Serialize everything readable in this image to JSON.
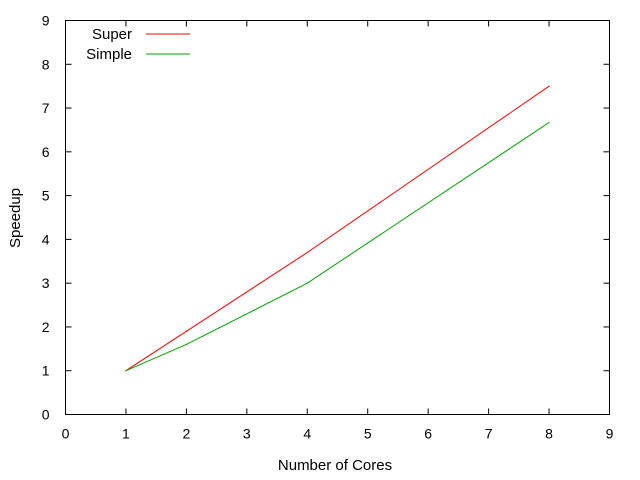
{
  "chart_data": {
    "type": "line",
    "title": "",
    "xlabel": "Number of Cores",
    "ylabel": "Speedup",
    "xlim": [
      0,
      9
    ],
    "ylim": [
      0,
      9
    ],
    "xticks": [
      0,
      1,
      2,
      3,
      4,
      5,
      6,
      7,
      8,
      9
    ],
    "yticks": [
      0,
      1,
      2,
      3,
      4,
      5,
      6,
      7,
      8,
      9
    ],
    "grid": false,
    "legend_position": "top-left",
    "series": [
      {
        "name": "Super",
        "color": "#ff0000",
        "x": [
          1,
          2,
          4,
          8
        ],
        "y": [
          1.0,
          1.9,
          3.7,
          7.5
        ]
      },
      {
        "name": "Simple",
        "color": "#00a000",
        "x": [
          1,
          2,
          4,
          8
        ],
        "y": [
          1.0,
          1.6,
          3.0,
          6.67
        ]
      }
    ]
  }
}
